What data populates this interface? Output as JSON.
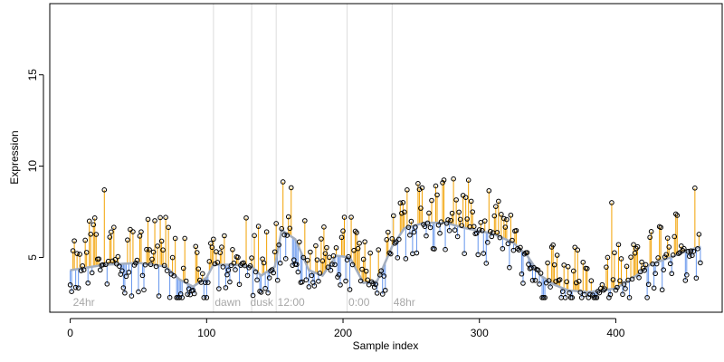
{
  "chart_data": {
    "type": "scatter",
    "title": "",
    "xlabel": "Sample index",
    "ylabel": "Expression",
    "xlim": [
      -15,
      478
    ],
    "ylim": [
      2.0,
      18.9
    ],
    "x_ticks": [
      {
        "value": 0,
        "label": "0"
      },
      {
        "value": 100,
        "label": "100"
      },
      {
        "value": 200,
        "label": "200"
      },
      {
        "value": 300,
        "label": "300"
      },
      {
        "value": 400,
        "label": "400"
      }
    ],
    "y_ticks": [
      {
        "value": 5,
        "label": "5"
      },
      {
        "value": 10,
        "label": "10"
      },
      {
        "value": 15,
        "label": "15"
      }
    ],
    "phase_markers": [
      {
        "x": 105,
        "label": ""
      },
      {
        "x": 133,
        "label": ""
      },
      {
        "x": 151,
        "label": ""
      },
      {
        "x": 203,
        "label": ""
      },
      {
        "x": 236,
        "label": ""
      }
    ],
    "phase_labels": [
      {
        "x": 2,
        "text": "24hr"
      },
      {
        "x": 106,
        "text": "dawn"
      },
      {
        "x": 132,
        "text": "dusk"
      },
      {
        "x": 152,
        "text": "12:00"
      },
      {
        "x": 204,
        "text": "0:00"
      },
      {
        "x": 237,
        "text": "48hr"
      }
    ],
    "trend_knots": [
      [
        0,
        4.3
      ],
      [
        25,
        4.6
      ],
      [
        50,
        4.7
      ],
      [
        70,
        4.5
      ],
      [
        80,
        3.8
      ],
      [
        90,
        3.4
      ],
      [
        100,
        3.9
      ],
      [
        105,
        4.6
      ],
      [
        120,
        4.6
      ],
      [
        133,
        4.5
      ],
      [
        140,
        4.0
      ],
      [
        150,
        4.5
      ],
      [
        155,
        6.5
      ],
      [
        165,
        6.0
      ],
      [
        175,
        4.3
      ],
      [
        185,
        4.0
      ],
      [
        195,
        5.1
      ],
      [
        205,
        5.0
      ],
      [
        215,
        3.6
      ],
      [
        225,
        3.7
      ],
      [
        236,
        5.6
      ],
      [
        245,
        6.6
      ],
      [
        260,
        6.9
      ],
      [
        275,
        6.9
      ],
      [
        290,
        6.6
      ],
      [
        310,
        6.3
      ],
      [
        325,
        5.8
      ],
      [
        335,
        5.1
      ],
      [
        345,
        4.0
      ],
      [
        355,
        3.5
      ],
      [
        365,
        3.2
      ],
      [
        380,
        3.1
      ],
      [
        400,
        3.3
      ],
      [
        415,
        4.0
      ],
      [
        425,
        4.6
      ],
      [
        440,
        5.0
      ],
      [
        450,
        5.3
      ],
      [
        462,
        5.6
      ]
    ],
    "n_points": 463,
    "series": [
      {
        "name": "",
        "role": "above-trend",
        "color": "#f2a100"
      },
      {
        "name": "",
        "role": "below-trend",
        "color": "#6495ed"
      },
      {
        "name": "",
        "role": "trend",
        "color": "#a3aebf"
      }
    ]
  }
}
